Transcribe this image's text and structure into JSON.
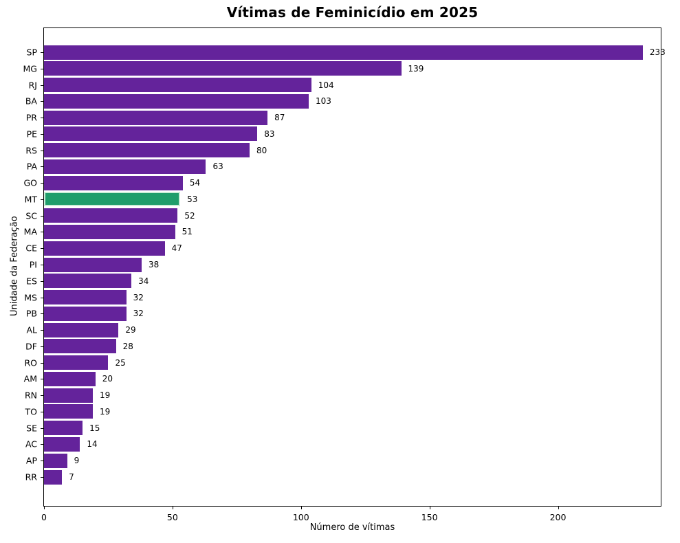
{
  "chart_data": {
    "type": "bar",
    "orientation": "horizontal",
    "title": "Vítimas de Feminicídio em 2025",
    "xlabel": "Número de vítimas",
    "ylabel": "Unidade da Federação",
    "categories": [
      "SP",
      "MG",
      "RJ",
      "BA",
      "PR",
      "PE",
      "RS",
      "PA",
      "GO",
      "MT",
      "SC",
      "MA",
      "CE",
      "PI",
      "ES",
      "MS",
      "PB",
      "AL",
      "DF",
      "RO",
      "AM",
      "RN",
      "TO",
      "SE",
      "AC",
      "AP",
      "RR"
    ],
    "values": [
      233,
      139,
      104,
      103,
      87,
      83,
      80,
      63,
      54,
      53,
      52,
      51,
      47,
      38,
      34,
      32,
      32,
      29,
      28,
      25,
      20,
      19,
      19,
      15,
      14,
      9,
      7
    ],
    "xlim": [
      0,
      240
    ],
    "xticks": [
      0,
      50,
      100,
      150,
      200
    ],
    "grid": false,
    "legend": null,
    "value_labels_shown": true,
    "colors": {
      "bar": "#64239b",
      "highlight_bar": "#1f9d6b",
      "highlight_edge": "#cdeeda",
      "text": "#000000",
      "spine": "#000000",
      "background": "#ffffff"
    },
    "highlight_category": "MT"
  }
}
